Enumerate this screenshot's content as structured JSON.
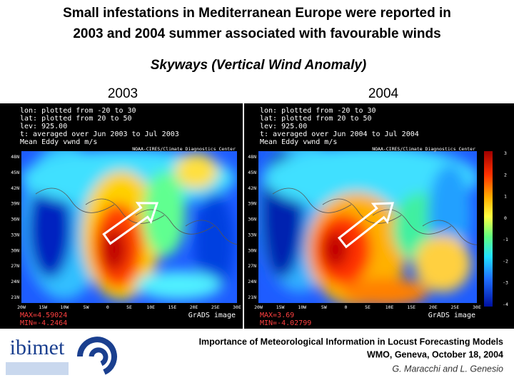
{
  "header": {
    "title_lines": [
      "Small infestations in Mediterranean Europe were reported in",
      "2003 and 2004 summer associated with favourable winds"
    ],
    "subtitle": "Skyways (Vertical Wind Anomaly)"
  },
  "maps": [
    {
      "year": "2003",
      "info_lines": [
        "lon: plotted from -20 to 30",
        "lat: plotted from 20 to 50",
        "lev: 925.00",
        "t: averaged over Jun 2003 to Jul 2003",
        "Mean Eddy vwnd m/s"
      ],
      "credit": "NOAA-CIRES/Climate Diagnostics Center",
      "max": "MAX=4.59024",
      "min": "MIN=-4.2464",
      "software": "GrADS image"
    },
    {
      "year": "2004",
      "info_lines": [
        "lon: plotted from -20 to 30",
        "lat: plotted from 20 to 50",
        "lev: 925.00",
        "t: averaged over Jun 2004 to Jul 2004",
        "Mean Eddy vwnd m/s"
      ],
      "credit": "NOAA-CIRES/Climate Diagnostics Center",
      "max": "MAX=3.69",
      "min": "MIN=-4.02799",
      "software": "GrADS image"
    }
  ],
  "lat_labels": [
    "48N",
    "45N",
    "42N",
    "39N",
    "36N",
    "33N",
    "30N",
    "27N",
    "24N",
    "21N"
  ],
  "lon_labels": [
    "20W",
    "15W",
    "10W",
    "5W",
    "0",
    "5E",
    "10E",
    "15E",
    "20E",
    "25E",
    "30E"
  ],
  "colorbar_labels": [
    "3",
    "2",
    "1",
    "0",
    "-1",
    "-2",
    "-3",
    "-4"
  ],
  "footer": {
    "logo": "ibimet",
    "lines": [
      "Importance of Meteorological Information in Locust Forecasting Models",
      "WMO, Geneva, October 18, 2004"
    ],
    "authors": "G. Maracchi and L. Genesio"
  }
}
